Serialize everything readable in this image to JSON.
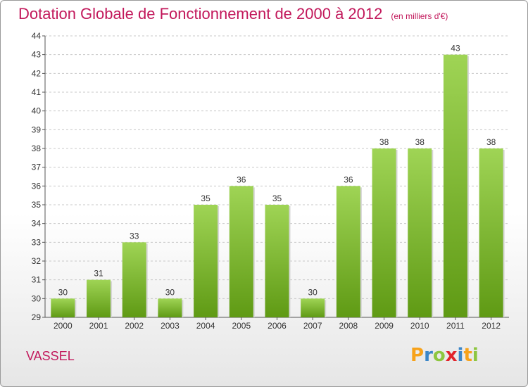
{
  "header": {
    "title": "Dotation Globale de Fonctionnement de 2000 à 2012",
    "unit": "(en milliers d'€)"
  },
  "footer": {
    "place": "VASSEL",
    "logo_letters": [
      "P",
      "r",
      "o",
      "x",
      "i",
      "t",
      "i"
    ],
    "logo_colors": [
      "#f7a21a",
      "#3b86c8",
      "#8dc63f",
      "#e2232a",
      "#3b86c8",
      "#f7a21a",
      "#8dc63f"
    ]
  },
  "colors": {
    "title": "#c2185b",
    "bar_light": "#9fd455",
    "bar_dark": "#5f9a14",
    "grid": "#c8c8c8"
  },
  "chart_data": {
    "type": "bar",
    "categories": [
      "2000",
      "2001",
      "2002",
      "2003",
      "2004",
      "2005",
      "2006",
      "2007",
      "2008",
      "2009",
      "2010",
      "2011",
      "2012"
    ],
    "values": [
      30,
      31,
      33,
      30,
      35,
      36,
      35,
      30,
      36,
      38,
      38,
      43,
      38
    ],
    "ylim": [
      29,
      44
    ],
    "yticks": [
      29,
      30,
      31,
      32,
      33,
      34,
      35,
      36,
      37,
      38,
      39,
      40,
      41,
      42,
      43,
      44
    ],
    "grid": "horizontal dashed",
    "data_labels": true
  }
}
